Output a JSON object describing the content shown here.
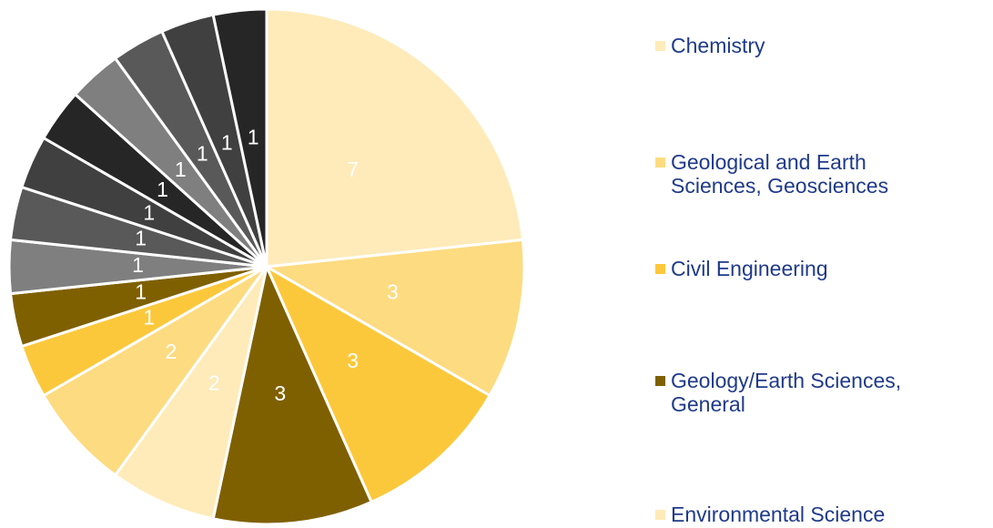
{
  "chart_data": {
    "type": "pie",
    "categories": [
      "Chemistry",
      "Geological and Earth Sciences, Geosciences",
      "Civil Engineering",
      "Geology/Earth Sciences, General",
      "Environmental Science",
      null,
      null,
      null,
      null,
      null,
      null,
      null,
      null,
      null,
      null,
      null
    ],
    "values": [
      7,
      3,
      3,
      3,
      2,
      2,
      1,
      1,
      1,
      1,
      1,
      1,
      1,
      1,
      1,
      1
    ],
    "colors": [
      "#FFEBB9",
      "#FDDB80",
      "#FCC83B",
      "#7F6000",
      "#FFEBB9",
      "#FDDB80",
      "#FCC83B",
      "#7F6000",
      "#7F7F7F",
      "#595959",
      "#404040",
      "#262626",
      "#7F7F7F",
      "#595959",
      "#404040",
      "#262626"
    ],
    "legend": "right"
  }
}
